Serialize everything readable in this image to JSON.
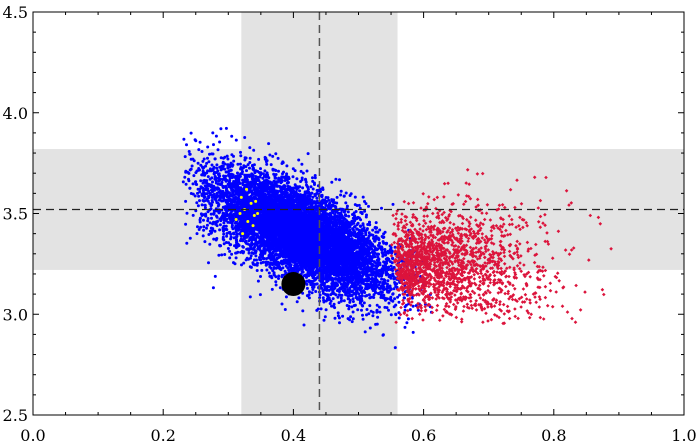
{
  "chart_data": {
    "type": "scatter",
    "title": "",
    "xlabel": "",
    "ylabel": "",
    "xlim": [
      0.0,
      1.0
    ],
    "ylim": [
      2.5,
      4.5
    ],
    "x_ticks": [
      0.0,
      0.2,
      0.4,
      0.6,
      0.8,
      1.0
    ],
    "x_tick_labels": [
      "0.0",
      "0.2",
      "0.4",
      "0.6",
      "0.8",
      "1.0"
    ],
    "y_ticks": [
      2.5,
      3.0,
      3.5,
      4.0,
      4.5
    ],
    "y_tick_labels": [
      "2.5",
      "3.0",
      "3.5",
      "4.0",
      "4.5"
    ],
    "grid": false,
    "shaded_bands": [
      {
        "axis": "x",
        "from": 0.32,
        "to": 0.56,
        "color": "#e3e3e3"
      },
      {
        "axis": "y",
        "from": 3.22,
        "to": 3.82,
        "color": "#e3e3e3"
      }
    ],
    "reference_lines": [
      {
        "axis": "x",
        "value": 0.44,
        "style": "dashed",
        "color": "#555555"
      },
      {
        "axis": "y",
        "value": 3.52,
        "style": "dashed",
        "color": "#555555"
      }
    ],
    "series": [
      {
        "color": "#0000ff",
        "marker": "dot",
        "count_estimate": 9000,
        "cluster": {
          "x_range": [
            0.23,
            0.62
          ],
          "y_range": [
            2.7,
            3.95
          ],
          "center": [
            0.41,
            3.4
          ],
          "trend": "decreasing"
        }
      },
      {
        "color": "#dc143c",
        "marker": "diamond",
        "count_estimate": 1800,
        "cluster": {
          "x_range": [
            0.55,
            0.92
          ],
          "y_range": [
            2.95,
            3.97
          ],
          "center": [
            0.67,
            3.25
          ],
          "trend": "flat"
        }
      },
      {
        "color": "#ffff00",
        "marker": "dot",
        "points": [
          [
            0.32,
            3.58
          ],
          [
            0.325,
            3.52
          ],
          [
            0.33,
            3.46
          ],
          [
            0.335,
            3.55
          ],
          [
            0.34,
            3.49
          ],
          [
            0.328,
            3.62
          ],
          [
            0.318,
            3.5
          ],
          [
            0.338,
            3.44
          ],
          [
            0.322,
            3.4
          ],
          [
            0.342,
            3.56
          ],
          [
            0.312,
            3.47
          ],
          [
            0.345,
            3.5
          ]
        ]
      }
    ],
    "highlight_point": {
      "x": 0.4,
      "y": 3.15,
      "color": "#000000"
    }
  }
}
